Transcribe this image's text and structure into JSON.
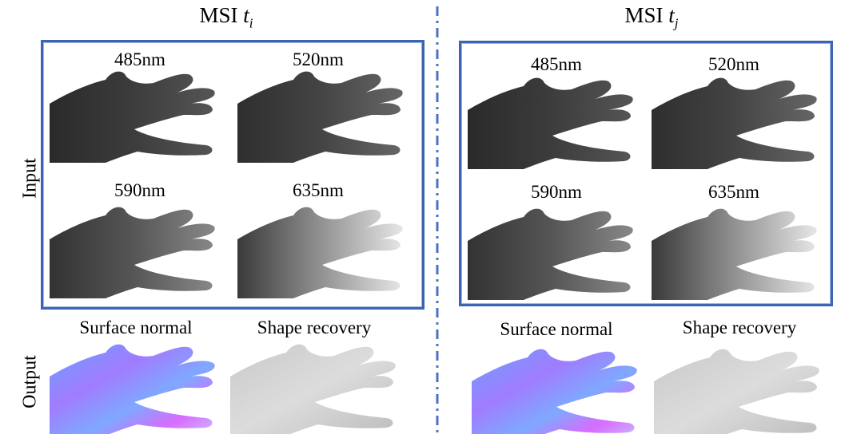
{
  "left": {
    "title_main": "MSI ",
    "title_var": "t",
    "title_sub": "i",
    "wavelengths": [
      "485nm",
      "520nm",
      "590nm",
      "635nm"
    ],
    "outputs": [
      "Surface normal",
      "Shape recovery"
    ]
  },
  "right": {
    "title_main": "MSI ",
    "title_var": "t",
    "title_sub": "j",
    "wavelengths": [
      "485nm",
      "520nm",
      "590nm",
      "635nm"
    ],
    "outputs": [
      "Surface normal",
      "Shape recovery"
    ]
  },
  "row_labels": {
    "input": "Input",
    "output": "Output"
  },
  "colors": {
    "frame": "#3d63b3",
    "divider": "#4a72c4"
  }
}
